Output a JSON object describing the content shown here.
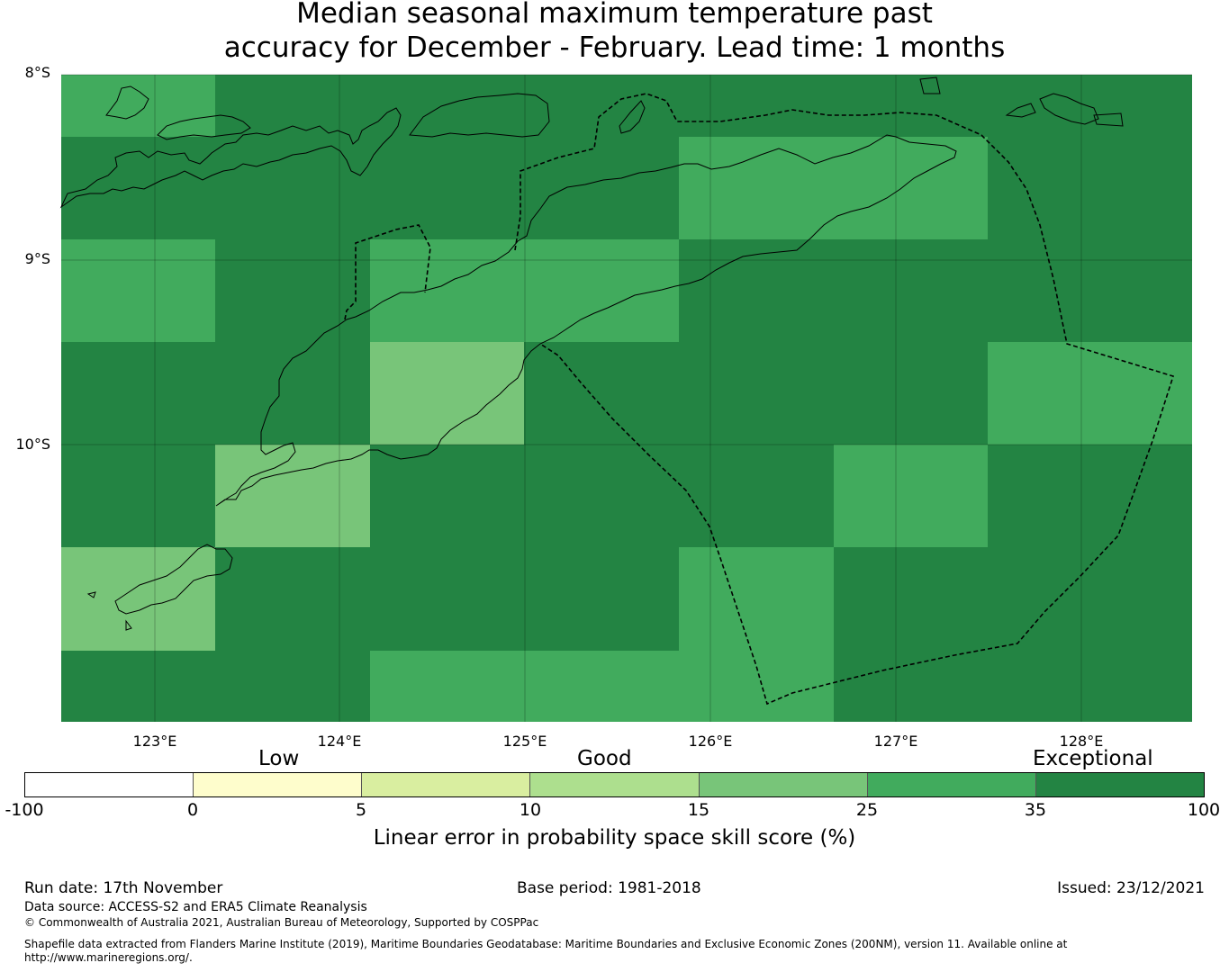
{
  "title": {
    "line1": "Median seasonal maximum temperature past",
    "line2": "accuracy for December - February. Lead time: 1 months"
  },
  "map": {
    "lat_labels": [
      "8°S",
      "9°S",
      "10°S"
    ],
    "lon_labels": [
      "123°E",
      "124°E",
      "125°E",
      "126°E",
      "127°E",
      "128°E"
    ],
    "grid_cell_skill_classes": [
      [
        "25-35",
        "35-100",
        "35-100",
        "35-100",
        "35-100",
        "35-100",
        "35-100"
      ],
      [
        "35-100",
        "35-100",
        "35-100",
        "35-100",
        "25-35",
        "25-35",
        "35-100"
      ],
      [
        "25-35",
        "35-100",
        "25-35",
        "25-35",
        "35-100",
        "35-100",
        "35-100"
      ],
      [
        "35-100",
        "35-100",
        "15-25",
        "35-100",
        "35-100",
        "35-100",
        "25-35"
      ],
      [
        "35-100",
        "15-25",
        "35-100",
        "35-100",
        "35-100",
        "25-35",
        "35-100"
      ],
      [
        "15-25",
        "35-100",
        "35-100",
        "35-100",
        "25-35",
        "35-100",
        "35-100"
      ],
      [
        "35-100",
        "35-100",
        "25-35",
        "25-35",
        "25-35",
        "35-100",
        "35-100"
      ]
    ]
  },
  "colorbar": {
    "category_labels": [
      "Low",
      "Good",
      "Exceptional"
    ],
    "ticks": [
      "-100",
      "0",
      "5",
      "10",
      "15",
      "25",
      "35",
      "100"
    ],
    "colors": [
      "#ffffff",
      "#fefdcc",
      "#d9eea0",
      "#addf8e",
      "#78c579",
      "#41ab5d",
      "#238443"
    ],
    "label": "Linear error in probability space skill score (%)"
  },
  "footer": {
    "run_date": "Run date: 17th November",
    "base_period": "Base period: 1981-2018",
    "issued": "Issued: 23/12/2021",
    "data_source": "Data source: ACCESS-S2 and ERA5 Climate Reanalysis",
    "copyright": "© Commonwealth of Australia 2021, Australian Bureau of Meteorology, Supported by COSPPac",
    "shapefile_line1": "Shapefile data extracted from Flanders Marine Institute (2019), Maritime Boundaries Geodatabase: Maritime Boundaries and Exclusive Economic Zones (200NM), version 11. Available online at",
    "shapefile_line2": "http://www.marineregions.org/."
  }
}
